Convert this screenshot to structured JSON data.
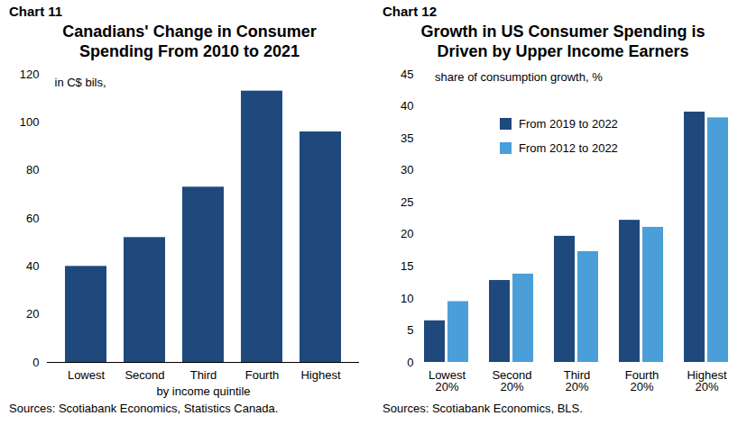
{
  "chart_data": [
    {
      "type": "bar",
      "chart_number": "Chart 11",
      "title": "Canadians' Change in Consumer Spending From 2010 to 2021",
      "subtitle": "in C$ bils,",
      "x_label": "by income quintile",
      "source": "Sources: Scotiabank Economics, Statistics Canada.",
      "categories": [
        "Lowest",
        "Second",
        "Third",
        "Fourth",
        "Highest"
      ],
      "values": [
        40,
        52,
        73,
        113,
        96
      ],
      "color": "#1f497d",
      "ylim": [
        0,
        120
      ],
      "yticks": [
        0,
        20,
        40,
        60,
        80,
        100,
        120
      ],
      "grid": false
    },
    {
      "type": "bar",
      "chart_number": "Chart 12",
      "title": "Growth in US Consumer Spending is Driven by Upper Income Earners",
      "subtitle": "share of consumption growth, %",
      "source": "Sources: Scotiabank Economics, BLS.",
      "categories": [
        "Lowest 20%",
        "Second 20%",
        "Third 20%",
        "Fourth 20%",
        "Highest 20%"
      ],
      "series": [
        {
          "name": "From 2019 to 2022",
          "color": "#1f497d",
          "values": [
            6.5,
            12.8,
            19.7,
            22.2,
            39.1
          ]
        },
        {
          "name": "From 2012 to 2022",
          "color": "#4a9fd8",
          "values": [
            9.5,
            13.8,
            17.3,
            21.1,
            38.2
          ]
        }
      ],
      "legend": "top",
      "ylim": [
        0,
        45
      ],
      "yticks": [
        0,
        5,
        10,
        15,
        20,
        25,
        30,
        35,
        40,
        45
      ],
      "grid": false
    }
  ]
}
